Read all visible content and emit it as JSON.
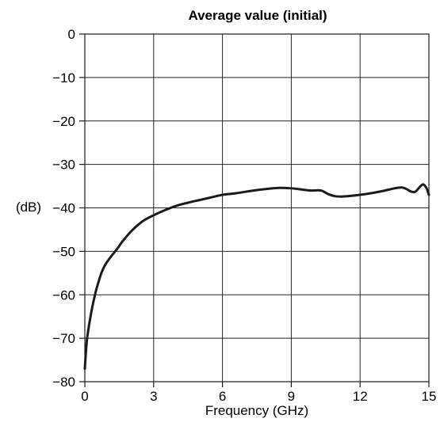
{
  "chart_data": {
    "type": "line",
    "title": "Average value (initial)",
    "xlabel": "Frequency (GHz)",
    "ylabel": "(dB)",
    "xlim": [
      0,
      15
    ],
    "ylim": [
      -80,
      0
    ],
    "xticks": [
      0,
      3,
      6,
      9,
      12,
      15
    ],
    "xtick_labels": [
      "0",
      "3",
      "6",
      "9",
      "12",
      "15"
    ],
    "yticks": [
      0,
      -10,
      -20,
      -30,
      -40,
      -50,
      -60,
      -70,
      -80
    ],
    "ytick_labels": [
      "0",
      "−10",
      "−20",
      "−30",
      "−40",
      "−50",
      "−60",
      "−70",
      "−80"
    ],
    "grid": true,
    "series": [
      {
        "color": "#1a1a1a",
        "x": [
          0.0,
          0.05,
          0.1,
          0.2,
          0.3,
          0.4,
          0.5,
          0.6,
          0.7,
          0.8,
          0.9,
          1.0,
          1.2,
          1.4,
          1.6,
          1.8,
          2.0,
          2.3,
          2.6,
          3.0,
          3.5,
          4.0,
          4.5,
          5.0,
          5.5,
          6.0,
          6.5,
          7.0,
          7.5,
          8.0,
          8.5,
          9.0,
          9.5,
          9.8,
          10.0,
          10.3,
          10.6,
          10.9,
          11.2,
          11.5,
          12.0,
          12.5,
          13.0,
          13.5,
          13.8,
          14.0,
          14.2,
          14.4,
          14.6,
          14.75,
          14.9,
          15.0
        ],
        "y": [
          -77.0,
          -73.0,
          -70.0,
          -66.5,
          -63.5,
          -61.0,
          -58.8,
          -57.0,
          -55.3,
          -54.0,
          -53.0,
          -52.2,
          -50.8,
          -49.5,
          -48.0,
          -46.7,
          -45.5,
          -44.0,
          -42.8,
          -41.7,
          -40.5,
          -39.5,
          -38.8,
          -38.2,
          -37.6,
          -37.0,
          -36.7,
          -36.3,
          -35.9,
          -35.6,
          -35.4,
          -35.5,
          -35.8,
          -36.0,
          -36.0,
          -36.0,
          -36.8,
          -37.3,
          -37.4,
          -37.3,
          -37.0,
          -36.6,
          -36.1,
          -35.5,
          -35.3,
          -35.6,
          -36.2,
          -36.3,
          -35.2,
          -34.6,
          -35.5,
          -37.0
        ]
      }
    ]
  }
}
